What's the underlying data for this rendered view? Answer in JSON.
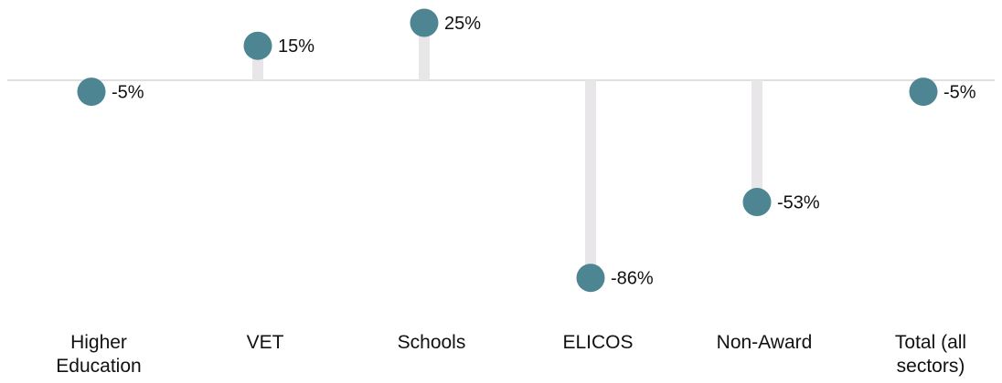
{
  "chart_data": {
    "type": "lollipop",
    "categories": [
      "Higher Education",
      "VET",
      "Schools",
      "ELICOS",
      "Non-Award",
      "Total (all sectors)"
    ],
    "category_label_lines": [
      [
        "Higher",
        "Education"
      ],
      [
        "VET"
      ],
      [
        "Schools"
      ],
      [
        "ELICOS"
      ],
      [
        "Non-Award"
      ],
      [
        "Total (all",
        "sectors)"
      ]
    ],
    "values": [
      -5,
      15,
      25,
      -86,
      -53,
      -5
    ],
    "data_labels": [
      "-5%",
      "15%",
      "25%",
      "-86%",
      "-53%",
      "-5%"
    ],
    "title": "",
    "xlabel": "",
    "ylabel": "",
    "y_unit": "%",
    "ylim": [
      -86,
      25
    ],
    "grid": false,
    "legend": "none",
    "colors": {
      "marker": "#4e8593",
      "stem": "#e8e6e9",
      "baseline": "#d6d6d6",
      "text": "#111111"
    }
  }
}
